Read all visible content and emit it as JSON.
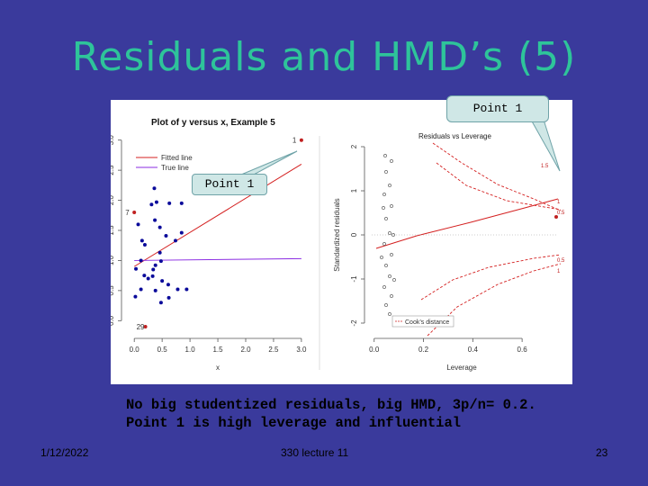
{
  "slide": {
    "title": "Residuals and HMD’s (5)",
    "body": "No big studentized residuals, big HMD, 3p/n= 0.2.  Point 1 is high leverage and influential",
    "footer_date": "1/12/2022",
    "footer_course": "330 lecture 11",
    "footer_page": "23"
  },
  "callouts": {
    "top": "Point 1",
    "middle": "Point 1"
  },
  "colors": {
    "background": "#3a3a9c",
    "title": "#2ec49a",
    "callout": "#cfe7e6",
    "fitted": "#d42020",
    "true": "#8a2be2",
    "points": "#0a0a9a"
  },
  "chart_data": [
    {
      "type": "scatter",
      "title": "Plot of y versus x, Example 5",
      "xlabel": "x",
      "ylabel": "y",
      "xlim": [
        -0.1,
        3.05
      ],
      "ylim": [
        -0.1,
        3.1
      ],
      "xticks": [
        "0.0",
        "0.5",
        "1.0",
        "1.5",
        "2.0",
        "2.5",
        "3.0"
      ],
      "yticks": [
        "0.0",
        "0.5",
        "1.0",
        "1.5",
        "2.0",
        "2.5",
        "3.0"
      ],
      "legend": [
        "Fitted line",
        "True line"
      ],
      "fitted_line": [
        [
          0.0,
          0.9
        ],
        [
          3.0,
          2.6
        ]
      ],
      "true_line": [
        [
          0.0,
          1.0
        ],
        [
          3.0,
          1.03
        ]
      ],
      "points": [
        [
          0.07,
          1.6
        ],
        [
          0.14,
          1.33
        ],
        [
          0.19,
          1.26
        ],
        [
          0.12,
          1.0
        ],
        [
          0.03,
          0.86
        ],
        [
          0.18,
          0.75
        ],
        [
          0.12,
          0.52
        ],
        [
          0.02,
          0.4
        ],
        [
          0.36,
          2.2
        ],
        [
          0.4,
          1.97
        ],
        [
          0.31,
          1.93
        ],
        [
          0.63,
          1.95
        ],
        [
          0.85,
          1.95
        ],
        [
          0.46,
          1.55
        ],
        [
          0.37,
          1.67
        ],
        [
          0.57,
          1.41
        ],
        [
          0.74,
          1.33
        ],
        [
          0.85,
          1.46
        ],
        [
          0.46,
          1.13
        ],
        [
          0.38,
          0.92
        ],
        [
          0.48,
          0.99
        ],
        [
          0.34,
          0.85
        ],
        [
          0.33,
          0.74
        ],
        [
          0.5,
          0.66
        ],
        [
          0.61,
          0.6
        ],
        [
          0.38,
          0.5
        ],
        [
          0.78,
          0.52
        ],
        [
          0.94,
          0.52
        ],
        [
          0.62,
          0.38
        ],
        [
          0.48,
          0.3
        ],
        [
          0.25,
          0.7
        ]
      ],
      "highlighted_points": [
        {
          "label": "1",
          "x": 3.0,
          "y": 3.0
        },
        {
          "label": "29",
          "x": 0.2,
          "y": -0.1
        },
        {
          "label": "7",
          "x": 0.0,
          "y": 1.8
        }
      ]
    },
    {
      "type": "scatter",
      "title": "Residuals vs Leverage",
      "xlabel": "Leverage",
      "ylabel": "Standardized residuals",
      "xlim": [
        -0.01,
        0.72
      ],
      "ylim": [
        -2.0,
        2.0
      ],
      "xticks": [
        "0.0",
        "0.2",
        "0.4",
        "0.6"
      ],
      "yticks": [
        "-2",
        "-1",
        "0",
        "1",
        "2"
      ],
      "legend": [
        "Cook’s distance"
      ],
      "contour_labels": [
        "1.5",
        "1",
        "0.5",
        "0.5",
        "1"
      ],
      "highlighted_points": [
        {
          "label": "1",
          "x": 0.7,
          "y": 1.32
        }
      ]
    }
  ]
}
